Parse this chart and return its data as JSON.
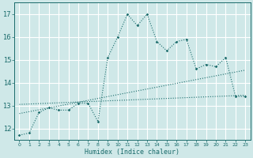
{
  "xlabel": "Humidex (Indice chaleur)",
  "bg_color": "#cfe8e8",
  "grid_color": "#ffffff",
  "line_color": "#1a6b6b",
  "xlim": [
    -0.5,
    23.5
  ],
  "ylim": [
    11.5,
    17.5
  ],
  "yticks": [
    12,
    13,
    14,
    15,
    16,
    17
  ],
  "xticks": [
    0,
    1,
    2,
    3,
    4,
    5,
    6,
    7,
    8,
    9,
    10,
    11,
    12,
    13,
    14,
    15,
    16,
    17,
    18,
    19,
    20,
    21,
    22,
    23
  ],
  "series1_x": [
    0,
    1,
    2,
    3,
    4,
    5,
    6,
    7,
    8,
    9,
    10,
    11,
    12,
    13,
    14,
    15,
    16,
    17,
    18,
    19,
    20,
    21,
    22,
    23
  ],
  "series1_y": [
    11.7,
    11.8,
    12.7,
    12.9,
    12.8,
    12.8,
    13.1,
    13.1,
    12.3,
    15.1,
    16.0,
    17.0,
    16.5,
    17.0,
    15.8,
    15.4,
    15.8,
    15.9,
    14.6,
    14.8,
    14.7,
    15.1,
    13.4,
    13.4
  ],
  "trend1_x": [
    0,
    23
  ],
  "trend1_y": [
    12.65,
    14.55
  ],
  "trend2_x": [
    0,
    23
  ],
  "trend2_y": [
    13.05,
    13.45
  ]
}
